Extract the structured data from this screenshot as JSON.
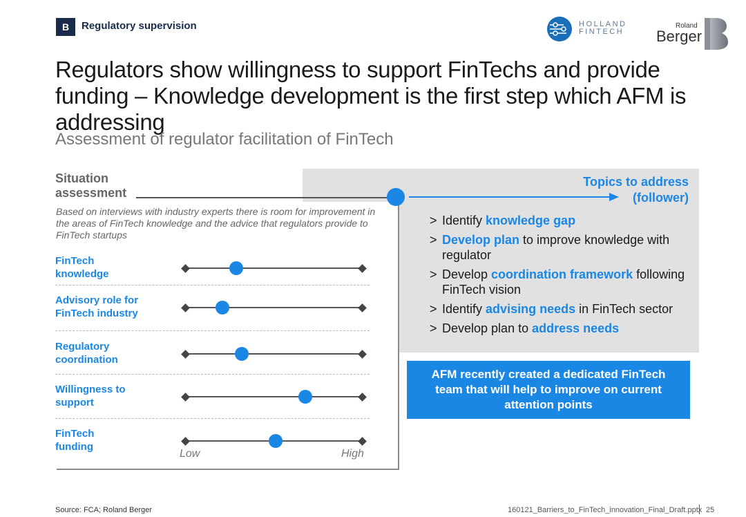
{
  "header": {
    "badge": "B",
    "section": "Regulatory supervision",
    "holland_line1": "HOLLAND",
    "holland_line2": "FINTECH",
    "rb_small": "Roland",
    "rb_big": "Berger"
  },
  "title": "Regulators show willingness to support FinTechs and provide funding – Knowledge development is the first step which AFM is addressing",
  "subtitle": "Assessment of regulator facilitation of FinTech",
  "situation": {
    "line1": "Situation",
    "line2": "assessment",
    "intro": "Based on interviews with industry experts there is room for improvement in the areas of FinTech knowledge and the advice that regulators provide to FinTech startups",
    "scale_low": "Low",
    "scale_high": "High",
    "rows": [
      {
        "line1": "FinTech",
        "line2": "knowledge",
        "level": 0.29
      },
      {
        "line1": "Advisory role for",
        "line2": "FinTech industry",
        "level": 0.21
      },
      {
        "line1": "Regulatory",
        "line2": "coordination",
        "level": 0.32
      },
      {
        "line1": "Willingness to",
        "line2": "support",
        "level": 0.68
      },
      {
        "line1": "FinTech",
        "line2": "funding",
        "level": 0.51
      }
    ]
  },
  "topics": {
    "line1": "Topics to address",
    "line2": "(follower)",
    "bullets": [
      {
        "pre": "Identify ",
        "hl": "knowledge gap",
        "post": ""
      },
      {
        "pre": "",
        "hl": "Develop plan",
        "post": " to improve knowledge with regulator"
      },
      {
        "pre": "Develop ",
        "hl": "coordination framework",
        "post": " following FinTech vision"
      },
      {
        "pre": "Identify ",
        "hl": "advising needs",
        "post": " in FinTech sector"
      },
      {
        "pre": "Develop plan to ",
        "hl": "address needs",
        "post": ""
      }
    ]
  },
  "callout": "AFM recently created a dedicated FinTech team that will help to improve on current attention points",
  "footer": {
    "source": "Source: FCA; Roland Berger",
    "file": "160121_Barriers_to_FinTech_innovation_Final_Draft.pptx",
    "page": "25"
  },
  "colors": {
    "accent": "#1b87e5",
    "navy": "#1a2b4c"
  }
}
